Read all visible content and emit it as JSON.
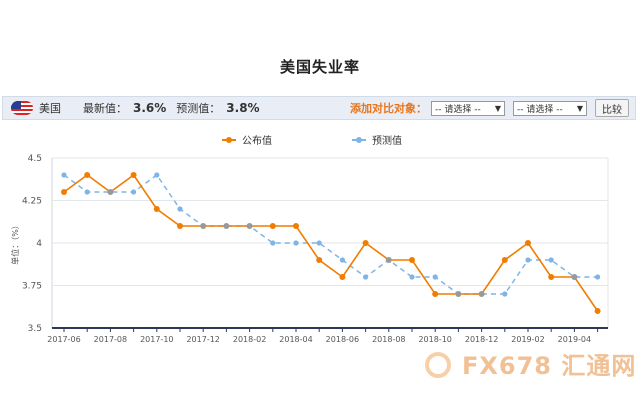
{
  "page": {
    "title": "美国失业率"
  },
  "toolbar": {
    "country": "美国",
    "latest_label": "最新值：",
    "latest_value": "3.6%",
    "forecast_label": "预测值：",
    "forecast_value": "3.8%",
    "compare_label": "添加对比对象：",
    "select1": "-- 请选择 --",
    "select2": "-- 请选择 --",
    "compare_button": "比较"
  },
  "watermark": {
    "text": "FX678 汇通网"
  },
  "colors": {
    "actual": "#f07d00",
    "forecast": "#7fb4e6",
    "overlap": "#999999",
    "axis": "#2b3a57"
  },
  "chart_data": {
    "type": "line",
    "ylabel": "单位：（%）",
    "ylim": [
      3.5,
      4.5
    ],
    "yticks": [
      3.5,
      3.75,
      4,
      4.25,
      4.5
    ],
    "ytick_labels": [
      "3.5",
      "3.75",
      "4",
      "4.25",
      "4.5"
    ],
    "categories": [
      "2017-06",
      "2017-07",
      "2017-08",
      "2017-09",
      "2017-10",
      "2017-11",
      "2017-12",
      "2018-01",
      "2018-02",
      "2018-03",
      "2018-04",
      "2018-05",
      "2018-06",
      "2018-07",
      "2018-08",
      "2018-09",
      "2018-10",
      "2018-11",
      "2018-12",
      "2019-01",
      "2019-02",
      "2019-03",
      "2019-04",
      "2019-05"
    ],
    "xtick_labels": [
      "2017-06",
      "2017-08",
      "2017-10",
      "2017-12",
      "2018-02",
      "2018-04",
      "2018-06",
      "2018-08",
      "2018-10",
      "2018-12",
      "2019-02",
      "2019-04"
    ],
    "grid": true,
    "legend": "top-center",
    "series": [
      {
        "name": "公布值",
        "values": [
          4.3,
          4.4,
          4.3,
          4.4,
          4.2,
          4.1,
          4.1,
          4.1,
          4.1,
          4.1,
          4.1,
          3.9,
          3.8,
          4.0,
          3.9,
          3.9,
          3.7,
          3.7,
          3.7,
          3.9,
          4.0,
          3.8,
          3.8,
          3.6
        ]
      },
      {
        "name": "预测值",
        "values": [
          4.4,
          4.3,
          4.3,
          4.3,
          4.4,
          4.2,
          4.1,
          4.1,
          4.1,
          4.0,
          4.0,
          4.0,
          3.9,
          3.8,
          3.9,
          3.8,
          3.8,
          3.7,
          3.7,
          3.7,
          3.9,
          3.9,
          3.8,
          3.8
        ]
      }
    ]
  }
}
